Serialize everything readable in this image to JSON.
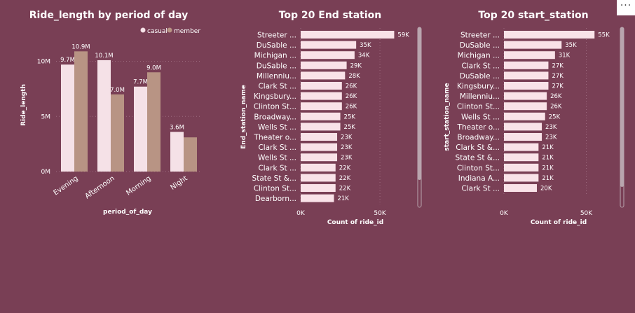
{
  "colors": {
    "background": "#793f55",
    "casual": "#f5e1e7",
    "member": "#b89484",
    "bar": "#f9e2e8",
    "grid": "#9c6a7e",
    "scrollbar": "#b9a5ae"
  },
  "toolbar": {
    "more_options_icon": "ellipsis-icon",
    "more_label": "···"
  },
  "chart_data": [
    {
      "type": "bar",
      "title": "Ride_length by period of day",
      "xlabel": "period_of_day",
      "ylabel": "Ride_length",
      "categories": [
        "Evening",
        "Afternoon",
        "Morning",
        "Night"
      ],
      "series": [
        {
          "name": "casual",
          "values": [
            9700000,
            10100000,
            7700000,
            3600000
          ],
          "labels": [
            "9.7M",
            "10.1M",
            "7.7M",
            "3.6M"
          ]
        },
        {
          "name": "member",
          "values": [
            10900000,
            7000000,
            9000000,
            3100000
          ],
          "labels": [
            "10.9M",
            "7.0M",
            "9.0M",
            ""
          ]
        }
      ],
      "yticks": [
        0,
        5000000,
        10000000
      ],
      "ytick_labels": [
        "0M",
        "5M",
        "10M"
      ],
      "ylim": [
        0,
        12000000
      ],
      "legend_position": "top-right",
      "grid": true
    },
    {
      "type": "bar",
      "orientation": "horizontal",
      "title": "Top 20 End station",
      "xlabel": "Count of ride_id",
      "ylabel": "End_station_name",
      "categories": [
        "Streeter ...",
        "DuSable ...",
        "Michigan ...",
        "DuSable ...",
        "Millenniu...",
        "Clark St ...",
        "Kingsbury...",
        "Clinton St...",
        "Broadway...",
        "Wells St ...",
        "Theater o...",
        "Clark St ...",
        "Wells St ...",
        "Clark St ...",
        "State St &...",
        "Clinton St...",
        "Dearborn..."
      ],
      "values": [
        59000,
        35000,
        34000,
        29000,
        28000,
        26000,
        26000,
        26000,
        25000,
        25000,
        23000,
        23000,
        23000,
        22000,
        22000,
        22000,
        21000
      ],
      "value_labels": [
        "59K",
        "35K",
        "34K",
        "29K",
        "28K",
        "26K",
        "26K",
        "26K",
        "25K",
        "25K",
        "23K",
        "23K",
        "23K",
        "22K",
        "22K",
        "22K",
        "21K"
      ],
      "xticks": [
        0,
        50000
      ],
      "xtick_labels": [
        "0K",
        "50K"
      ],
      "xlim": [
        0,
        65000
      ],
      "grid": true
    },
    {
      "type": "bar",
      "orientation": "horizontal",
      "title": "Top 20 start_station",
      "xlabel": "Count of ride_id",
      "ylabel": "start_station_name",
      "categories": [
        "Streeter ...",
        "DuSable ...",
        "Michigan ...",
        "Clark St ...",
        "DuSable ...",
        "Kingsbury...",
        "Millenniu...",
        "Clinton St...",
        "Wells St ...",
        "Theater o...",
        "Broadway...",
        "Clark St &...",
        "State St &...",
        "Clinton St...",
        "Indiana A...",
        "Clark St ..."
      ],
      "values": [
        55000,
        35000,
        31000,
        27000,
        27000,
        27000,
        26000,
        26000,
        25000,
        23000,
        23000,
        21000,
        21000,
        21000,
        21000,
        20000
      ],
      "value_labels": [
        "55K",
        "35K",
        "31K",
        "27K",
        "27K",
        "27K",
        "26K",
        "26K",
        "25K",
        "23K",
        "23K",
        "21K",
        "21K",
        "21K",
        "21K",
        "20K"
      ],
      "xticks": [
        0,
        50000
      ],
      "xtick_labels": [
        "0K",
        "50K"
      ],
      "xlim": [
        0,
        60000
      ],
      "grid": true
    }
  ]
}
